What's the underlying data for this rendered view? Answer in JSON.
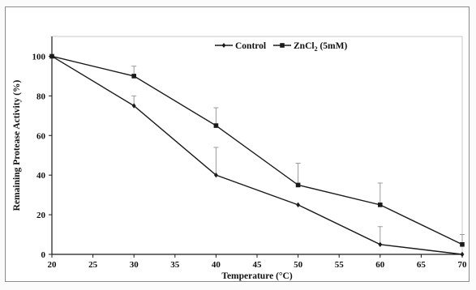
{
  "chart_data": {
    "type": "line",
    "xlabel": "Temperature (°C)",
    "ylabel": "Remaining Protease Activity (%)",
    "x": [
      20,
      30,
      40,
      50,
      60,
      70
    ],
    "xlim": [
      20,
      70
    ],
    "ylim": [
      0,
      110
    ],
    "xticks": [
      20,
      25,
      30,
      35,
      40,
      45,
      50,
      55,
      60,
      65,
      70
    ],
    "yticks": [
      0,
      20,
      40,
      60,
      80,
      100
    ],
    "grid": false,
    "legend_position": "top-center",
    "series": [
      {
        "name": "Control",
        "marker": "diamond",
        "values": [
          100,
          75,
          40,
          25,
          5,
          0
        ],
        "error_upper": [
          0,
          5,
          14,
          0,
          9,
          0
        ]
      },
      {
        "name": "ZnCl",
        "name_subscript": "2",
        "name_suffix": " (5mM)",
        "marker": "square",
        "values": [
          100,
          90,
          65,
          35,
          25,
          5
        ],
        "error_upper": [
          0,
          5,
          9,
          11,
          11,
          5
        ]
      }
    ],
    "colors": {
      "line": "#1a1a1a",
      "frame": "#8a8a8a"
    }
  }
}
